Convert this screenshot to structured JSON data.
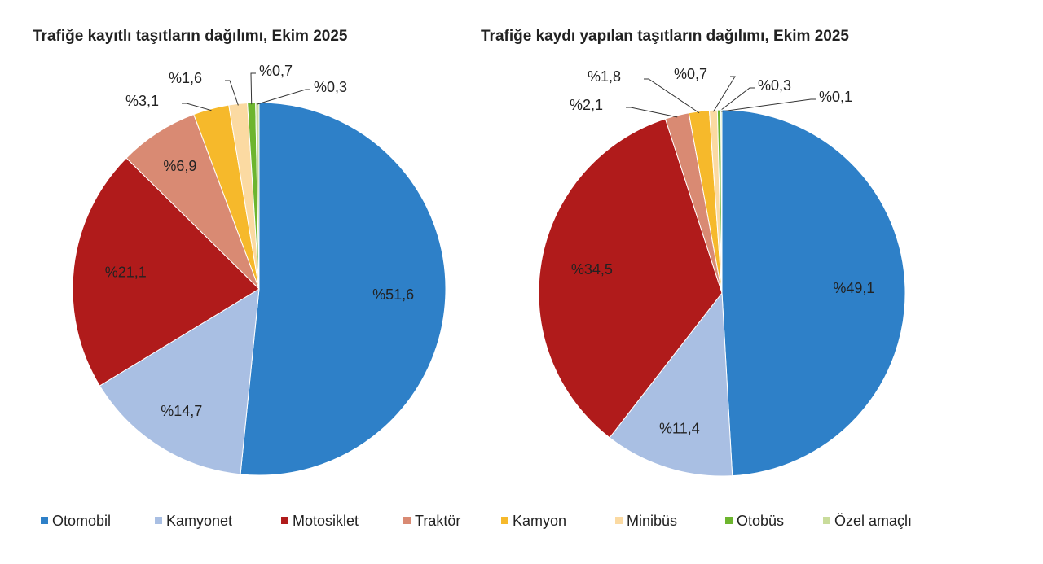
{
  "chart_data": [
    {
      "type": "pie",
      "title": "Trafiğe kayıtlı taşıtların dağılımı, Ekim 2025",
      "categories": [
        "Otomobil",
        "Kamyonet",
        "Motosiklet",
        "Traktör",
        "Kamyon",
        "Minibüs",
        "Otobüs",
        "Özel amaçlı"
      ],
      "values": [
        51.6,
        14.7,
        21.1,
        6.9,
        3.1,
        1.6,
        0.7,
        0.3
      ],
      "value_labels": [
        "%51,6",
        "%14,7",
        "%21,1",
        "%6,9",
        "%3,1",
        "%1,6",
        "%0,7",
        "%0,3"
      ],
      "colors": [
        "#2e80c8",
        "#a9bfe3",
        "#b01b1b",
        "#d98a73",
        "#f6b92b",
        "#fbdaa2",
        "#6db52e",
        "#c9dc9b"
      ]
    },
    {
      "type": "pie",
      "title": "Trafiğe kaydı yapılan taşıtların dağılımı, Ekim 2025",
      "categories": [
        "Otomobil",
        "Kamyonet",
        "Motosiklet",
        "Traktör",
        "Kamyon",
        "Minibüs",
        "Otobüs",
        "Özel amaçlı"
      ],
      "values": [
        49.1,
        11.4,
        34.5,
        2.1,
        1.8,
        0.7,
        0.3,
        0.1
      ],
      "value_labels": [
        "%49,1",
        "%11,4",
        "%34,5",
        "%2,1",
        "%1,8",
        "%0,7",
        "%0,3",
        "%0,1"
      ],
      "colors": [
        "#2e80c8",
        "#a9bfe3",
        "#b01b1b",
        "#d98a73",
        "#f6b92b",
        "#fbdaa2",
        "#6db52e",
        "#c9dc9b"
      ]
    }
  ]
}
